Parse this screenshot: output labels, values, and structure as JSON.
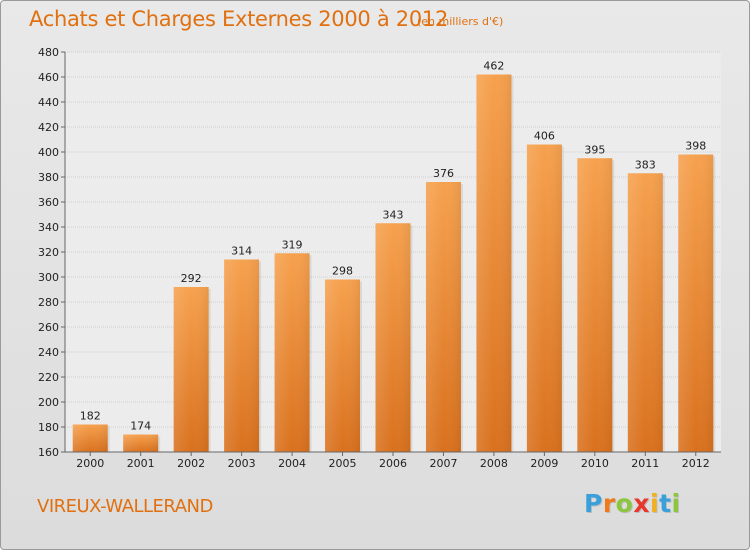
{
  "chart_data": {
    "type": "bar",
    "title": "Achats et Charges Externes 2000 à 2012",
    "subtitle": "(en milliers d'€)",
    "categories": [
      "2000",
      "2001",
      "2002",
      "2003",
      "2004",
      "2005",
      "2006",
      "2007",
      "2008",
      "2009",
      "2010",
      "2011",
      "2012"
    ],
    "values": [
      182,
      174,
      292,
      314,
      319,
      298,
      343,
      376,
      462,
      406,
      395,
      383,
      398
    ],
    "ylim": [
      160,
      480
    ],
    "yticks": [
      160,
      180,
      200,
      220,
      240,
      260,
      280,
      300,
      320,
      340,
      360,
      380,
      400,
      420,
      440,
      460,
      480
    ],
    "grid": true,
    "bar_color": "#f0923a",
    "legend": "none"
  },
  "footer": {
    "place_name": "VIREUX-WALLERAND",
    "brand_letters": [
      {
        "ch": "P",
        "color": "#3aa0dc"
      },
      {
        "ch": "r",
        "color": "#f07a1a"
      },
      {
        "ch": "o",
        "color": "#8cc63e"
      },
      {
        "ch": "x",
        "color": "#e8362c"
      },
      {
        "ch": "i",
        "color": "#f0b020"
      },
      {
        "ch": "t",
        "color": "#3aa0dc"
      },
      {
        "ch": "i",
        "color": "#8cc63e"
      }
    ]
  }
}
